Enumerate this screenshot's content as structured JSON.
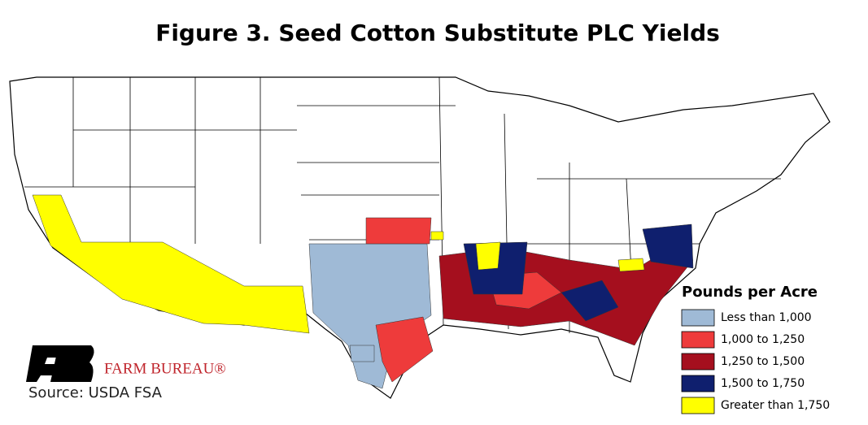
{
  "title": "Figure 3. Seed Cotton Substitute PLC Yields",
  "legend": {
    "title": "Pounds per Acre",
    "items": [
      {
        "label": "Less than 1,000",
        "color": "#9fbad6"
      },
      {
        "label": "1,000 to 1,250",
        "color": "#ee3b3b"
      },
      {
        "label": "1,250 to 1,500",
        "color": "#a50f1e"
      },
      {
        "label": "1,500 to 1,750",
        "color": "#0f1f6e"
      },
      {
        "label": "Greater than 1,750",
        "color": "#ffff00"
      }
    ]
  },
  "logo": {
    "name": "FARM BUREAU®"
  },
  "source": "Source: USDA FSA"
}
